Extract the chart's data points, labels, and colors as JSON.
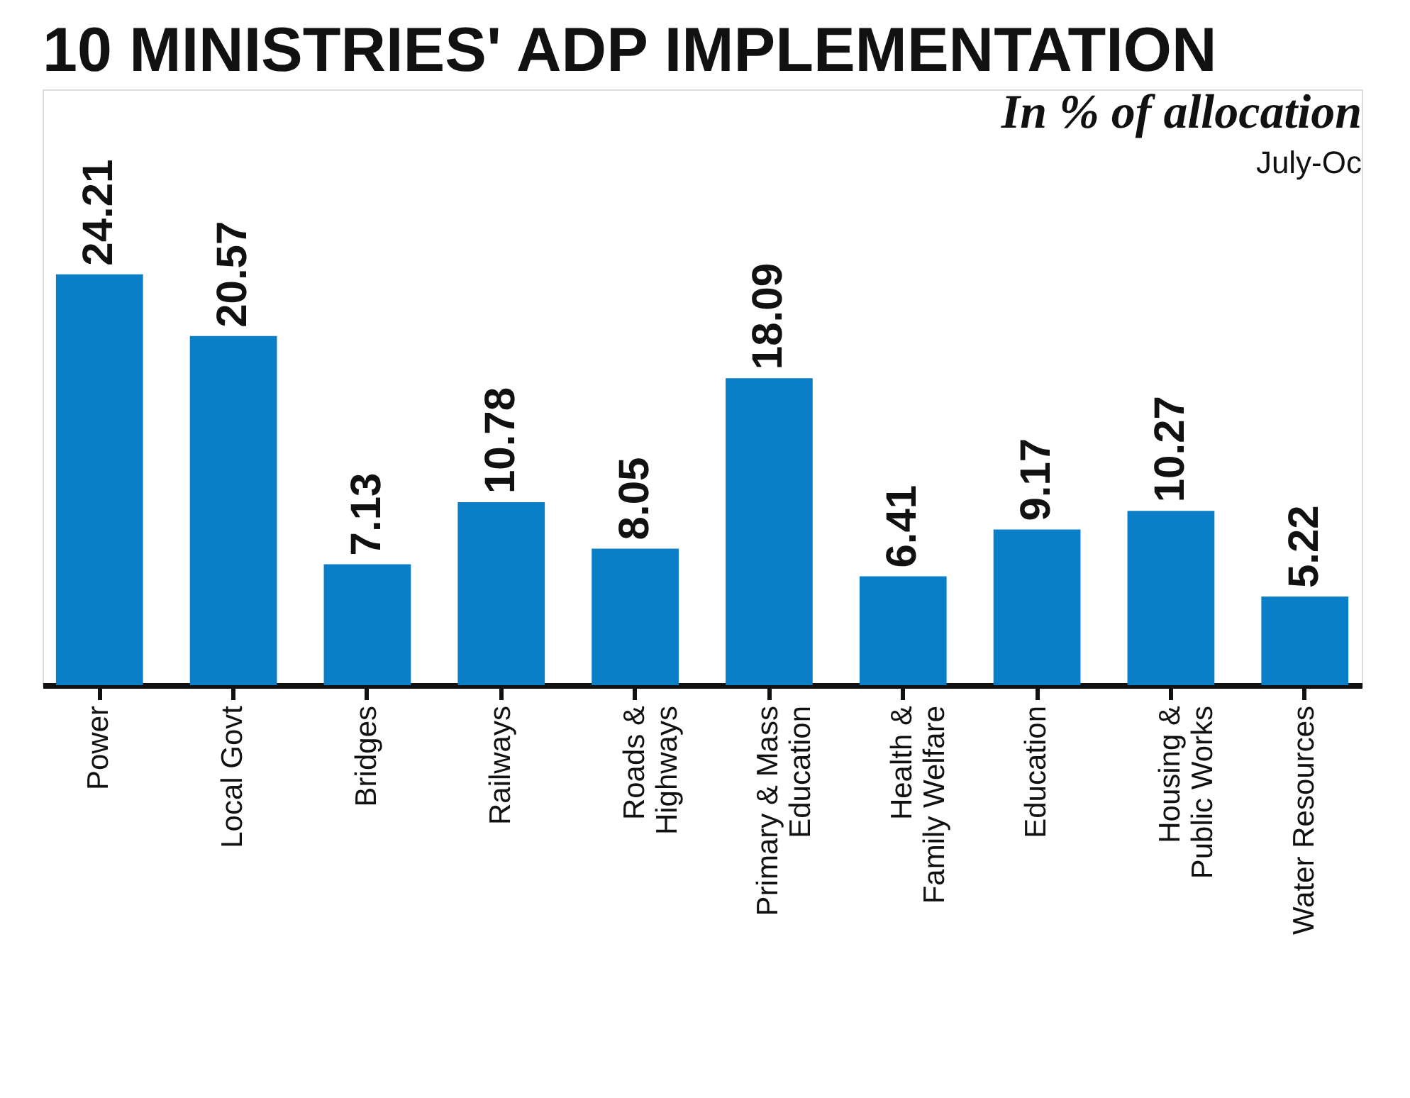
{
  "chart_data": {
    "type": "bar",
    "title": "10 MINISTRIES' ADP IMPLEMENTATION",
    "subtitle": "In % of allocation",
    "annotations": [
      "July-Oc"
    ],
    "categories": [
      "Power",
      "Local Govt",
      "Bridges",
      "Railways",
      "Roads &\nHighways",
      "Primary & Mass\nEducation",
      "Health &\nFamily Welfare",
      "Education",
      "Housing &\nPublic Works",
      "Water Resources"
    ],
    "values": [
      24.21,
      20.57,
      7.13,
      10.78,
      8.05,
      18.09,
      6.41,
      9.17,
      10.27,
      5.22
    ],
    "color": "#0a7fc8",
    "data_labels": true,
    "grid": false
  }
}
